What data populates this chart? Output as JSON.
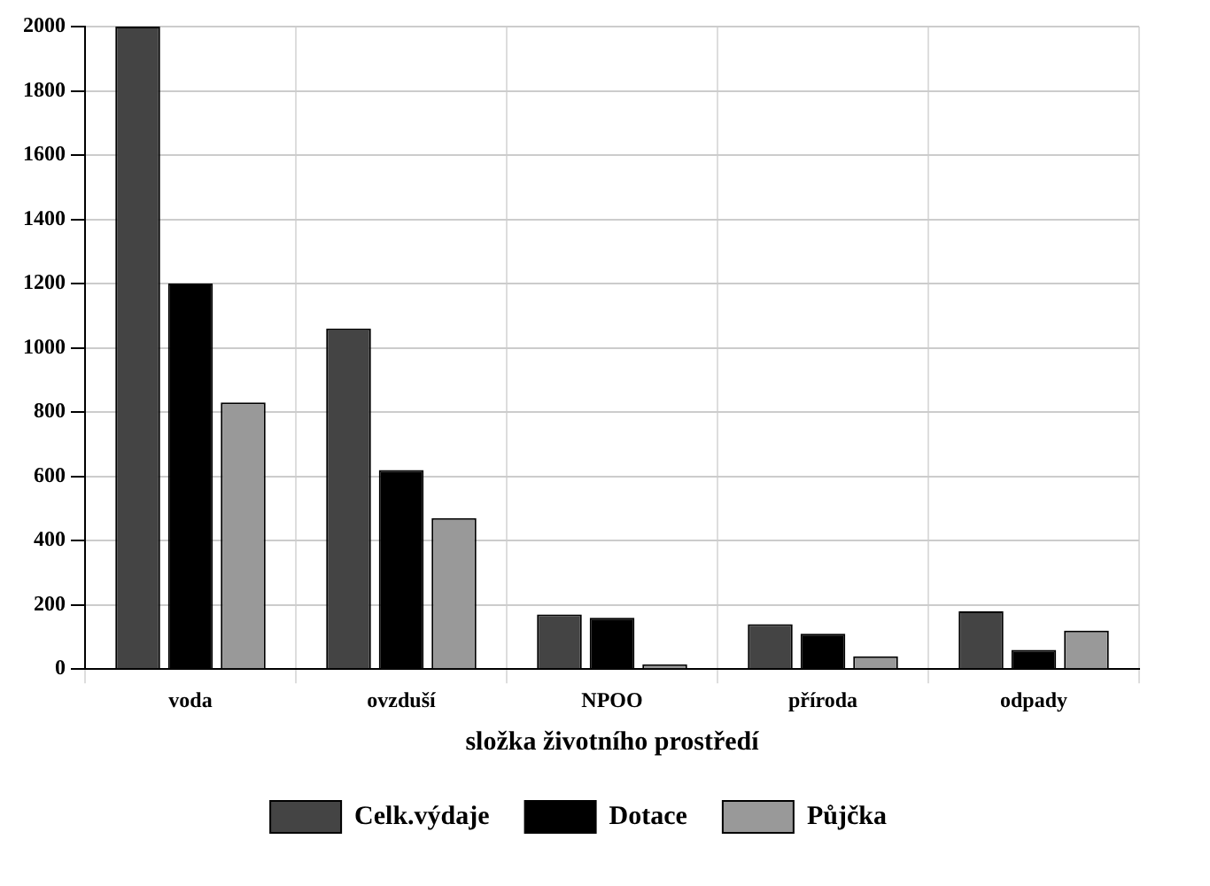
{
  "chart_data": {
    "type": "bar",
    "xlabel": "složka životního prostředí",
    "categories": [
      "voda",
      "ovzduší",
      "NPOO",
      "příroda",
      "odpady"
    ],
    "series": [
      {
        "name": "Celk.výdaje",
        "color": "#444444",
        "values": [
          2000,
          1060,
          170,
          140,
          180
        ]
      },
      {
        "name": "Dotace",
        "color": "#000000",
        "values": [
          1200,
          620,
          160,
          110,
          60
        ]
      },
      {
        "name": "Půjčka",
        "color": "#999999",
        "values": [
          830,
          470,
          15,
          40,
          120
        ]
      }
    ],
    "ylim": [
      0,
      2000
    ],
    "yticks": [
      0,
      200,
      400,
      600,
      800,
      1000,
      1200,
      1400,
      1600,
      1800,
      2000
    ],
    "grid": true,
    "legend": "bottom"
  }
}
